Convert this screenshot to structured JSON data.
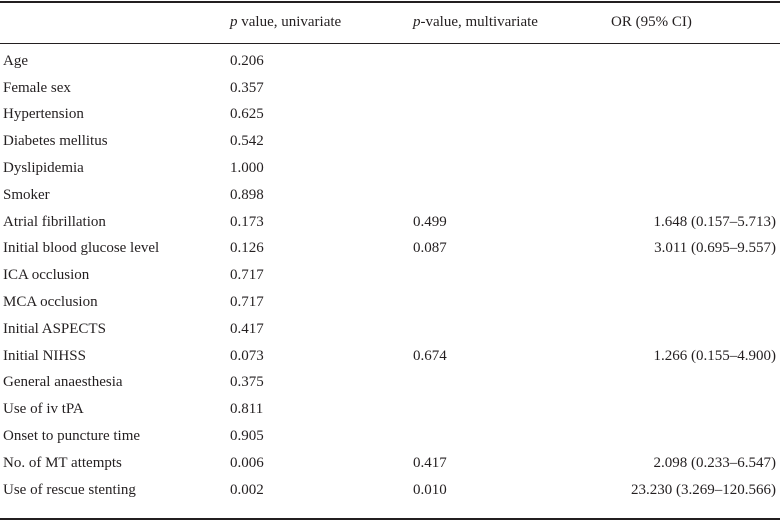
{
  "table": {
    "headers": {
      "col1_italic": "p",
      "col1_rest": " value, univariate",
      "col2_italic": "p",
      "col2_rest": "-value, multivariate",
      "col3": "OR (95% CI)"
    },
    "rows": [
      {
        "variable": "Age",
        "p_uni": "0.206",
        "p_multi": "",
        "or_ci": ""
      },
      {
        "variable": "Female sex",
        "p_uni": "0.357",
        "p_multi": "",
        "or_ci": ""
      },
      {
        "variable": "Hypertension",
        "p_uni": "0.625",
        "p_multi": "",
        "or_ci": ""
      },
      {
        "variable": "Diabetes mellitus",
        "p_uni": "0.542",
        "p_multi": "",
        "or_ci": ""
      },
      {
        "variable": "Dyslipidemia",
        "p_uni": "1.000",
        "p_multi": "",
        "or_ci": ""
      },
      {
        "variable": "Smoker",
        "p_uni": "0.898",
        "p_multi": "",
        "or_ci": ""
      },
      {
        "variable": "Atrial fibrillation",
        "p_uni": "0.173",
        "p_multi": "0.499",
        "or_ci": "1.648 (0.157–5.713)"
      },
      {
        "variable": "Initial blood glucose level",
        "p_uni": "0.126",
        "p_multi": "0.087",
        "or_ci": "3.011 (0.695–9.557)"
      },
      {
        "variable": "ICA occlusion",
        "p_uni": "0.717",
        "p_multi": "",
        "or_ci": ""
      },
      {
        "variable": "MCA occlusion",
        "p_uni": "0.717",
        "p_multi": "",
        "or_ci": ""
      },
      {
        "variable": "Initial ASPECTS",
        "p_uni": "0.417",
        "p_multi": "",
        "or_ci": ""
      },
      {
        "variable": "Initial NIHSS",
        "p_uni": "0.073",
        "p_multi": "0.674",
        "or_ci": "1.266 (0.155–4.900)"
      },
      {
        "variable": "General anaesthesia",
        "p_uni": "0.375",
        "p_multi": "",
        "or_ci": ""
      },
      {
        "variable": "Use of iv tPA",
        "p_uni": "0.811",
        "p_multi": "",
        "or_ci": ""
      },
      {
        "variable": "Onset to puncture time",
        "p_uni": "0.905",
        "p_multi": "",
        "or_ci": ""
      },
      {
        "variable": "No. of MT attempts",
        "p_uni": "0.006",
        "p_multi": "0.417",
        "or_ci": "2.098 (0.233–6.547)"
      },
      {
        "variable": "Use of rescue stenting",
        "p_uni": "0.002",
        "p_multi": "0.010",
        "or_ci": "23.230 (3.269–120.566)"
      }
    ]
  }
}
